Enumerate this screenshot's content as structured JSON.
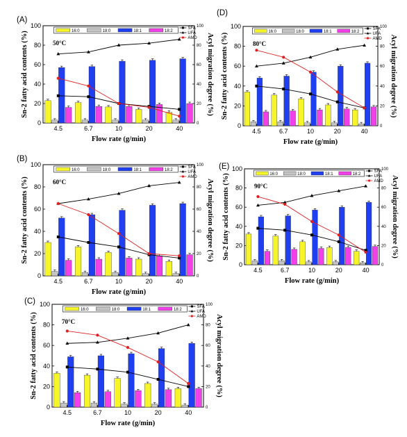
{
  "figure": {
    "colors": {
      "c16_0": "#f5f52a",
      "c18_0": "#c4c4c4",
      "c18_1": "#1f3ff0",
      "c18_2": "#f040e8",
      "sfa": "#000000",
      "ufa": "#000000",
      "amd": "#e02020"
    },
    "legend_labels": {
      "bars": [
        "16:0",
        "18:0",
        "18:1",
        "18:2"
      ],
      "lines": [
        "SFA",
        "UFA",
        "AMD"
      ]
    }
  },
  "chart_data": [
    {
      "type": "bar",
      "panel_label": "(A)",
      "temperature_label": "50°C",
      "categories": [
        "4.5",
        "6.7",
        "10",
        "20",
        "40"
      ],
      "xlabel": "Flow rate (g/min)",
      "ylabel": "Sn-2 fatty acid contents (%)",
      "y2label": "Acyl migration degree (%)",
      "ylim": [
        0,
        100
      ],
      "y2lim": [
        0,
        100
      ],
      "yticks": [
        "0",
        "20",
        "40",
        "60",
        "80",
        "100"
      ],
      "y2ticks": [
        "0",
        "20",
        "40",
        "60",
        "80",
        "100"
      ],
      "series": [
        {
          "name": "16:0",
          "values": [
            23,
            21,
            16.5,
            14,
            11
          ]
        },
        {
          "name": "18:0",
          "values": [
            3,
            3,
            3,
            3,
            3
          ]
        },
        {
          "name": "18:1",
          "values": [
            57,
            58,
            63.5,
            64.5,
            66
          ]
        },
        {
          "name": "18:2",
          "values": [
            16,
            17,
            17,
            19,
            20
          ]
        }
      ],
      "line_series": [
        {
          "name": "SFA",
          "values": [
            28,
            27,
            20,
            17,
            14
          ]
        },
        {
          "name": "UFA",
          "values": [
            71,
            73,
            80,
            82,
            86
          ]
        },
        {
          "name": "AMD",
          "values": [
            46,
            38,
            20,
            16,
            7
          ]
        }
      ]
    },
    {
      "type": "bar",
      "panel_label": "(B)",
      "temperature_label": "60°C",
      "categories": [
        "4.5",
        "6.7",
        "10",
        "20",
        "40"
      ],
      "xlabel": "Flow rate (g/min)",
      "ylabel": "Sn-2 fatty acid contents (%)",
      "y2label": "Acyl migration degree (%)",
      "ylim": [
        0,
        100
      ],
      "y2lim": [
        0,
        100
      ],
      "yticks": [
        "0",
        "20",
        "40",
        "60",
        "80",
        "100"
      ],
      "y2ticks": [
        "0",
        "20",
        "40",
        "60",
        "80",
        "100"
      ],
      "series": [
        {
          "name": "16:0",
          "values": [
            30,
            26,
            21,
            15,
            13
          ]
        },
        {
          "name": "18:0",
          "values": [
            4,
            3,
            3,
            2,
            2
          ]
        },
        {
          "name": "18:1",
          "values": [
            52,
            55,
            59,
            63.5,
            65
          ]
        },
        {
          "name": "18:2",
          "values": [
            14,
            15,
            16,
            18,
            19
          ]
        }
      ],
      "line_series": [
        {
          "name": "SFA",
          "values": [
            35,
            30,
            26,
            19,
            16
          ]
        },
        {
          "name": "UFA",
          "values": [
            65,
            69,
            74,
            81,
            84
          ]
        },
        {
          "name": "AMD",
          "values": [
            65,
            55,
            38,
            20,
            18
          ]
        }
      ]
    },
    {
      "type": "bar",
      "panel_label": "(C)",
      "temperature_label": "70°C",
      "categories": [
        "4.5",
        "6.7",
        "10",
        "20",
        "40"
      ],
      "xlabel": "Flow rate (g/min)",
      "ylabel": "Sn-2 fatty acid contents (%)",
      "y2label": "Acyl migration degree (%)",
      "ylim": [
        0,
        100
      ],
      "y2lim": [
        0,
        100
      ],
      "yticks": [
        "0",
        "20",
        "40",
        "60",
        "80",
        "100"
      ],
      "y2ticks": [
        "0",
        "20",
        "40",
        "60",
        "80",
        "100"
      ],
      "series": [
        {
          "name": "16:0",
          "values": [
            33,
            31,
            28,
            23,
            18
          ]
        },
        {
          "name": "18:0",
          "values": [
            4,
            4,
            3,
            3,
            2
          ]
        },
        {
          "name": "18:1",
          "values": [
            49,
            50,
            52,
            57,
            62
          ]
        },
        {
          "name": "18:2",
          "values": [
            14,
            15,
            16,
            17,
            18
          ]
        }
      ],
      "line_series": [
        {
          "name": "SFA",
          "values": [
            39,
            37,
            34,
            27,
            20
          ]
        },
        {
          "name": "UFA",
          "values": [
            62,
            63,
            67,
            72,
            80
          ]
        },
        {
          "name": "AMD",
          "values": [
            74,
            70,
            58,
            44,
            23
          ]
        }
      ]
    },
    {
      "type": "bar",
      "panel_label": "(D)",
      "temperature_label": "80°C",
      "categories": [
        "4.5",
        "6.7",
        "10",
        "20",
        "40"
      ],
      "xlabel": "Flow rate (g/min)",
      "ylabel": "Sn-2 fatty acid contents (%)",
      "y2label": "Acyl migration degree (%)",
      "ylim": [
        0,
        100
      ],
      "y2lim": [
        0,
        100
      ],
      "yticks": [
        "0",
        "20",
        "40",
        "60",
        "80",
        "100"
      ],
      "y2ticks": [
        "0",
        "20",
        "40",
        "60",
        "80",
        "100"
      ],
      "series": [
        {
          "name": "16:0",
          "values": [
            34,
            31,
            27,
            21,
            16
          ]
        },
        {
          "name": "18:0",
          "values": [
            4,
            4,
            3,
            3,
            2
          ]
        },
        {
          "name": "18:1",
          "values": [
            48,
            50,
            54,
            60,
            63
          ]
        },
        {
          "name": "18:2",
          "values": [
            14,
            15,
            16,
            17,
            19
          ]
        }
      ],
      "line_series": [
        {
          "name": "SFA",
          "values": [
            40,
            37,
            32,
            24,
            18
          ]
        },
        {
          "name": "UFA",
          "values": [
            60,
            63,
            69,
            77,
            81
          ]
        },
        {
          "name": "AMD",
          "values": [
            76,
            69,
            54,
            34,
            18
          ]
        }
      ]
    },
    {
      "type": "bar",
      "panel_label": "(E)",
      "temperature_label": "90°C",
      "categories": [
        "4.5",
        "6.7",
        "10",
        "20",
        "40"
      ],
      "xlabel": "Flow rate (g/min)",
      "ylabel": "Sn-2 fatty acid contents (%)",
      "y2label": "Acyl migration degree (%)",
      "ylim": [
        0,
        100
      ],
      "y2lim": [
        0,
        100
      ],
      "yticks": [
        "0",
        "20",
        "40",
        "60",
        "80",
        "100"
      ],
      "y2ticks": [
        "0",
        "20",
        "40",
        "60",
        "80",
        "100"
      ],
      "series": [
        {
          "name": "16:0",
          "values": [
            32,
            30,
            24,
            18,
            14
          ]
        },
        {
          "name": "18:0",
          "values": [
            4,
            4,
            3,
            3,
            2
          ]
        },
        {
          "name": "18:1",
          "values": [
            50,
            51,
            57,
            60,
            65
          ]
        },
        {
          "name": "18:2",
          "values": [
            14,
            16,
            17,
            18,
            19
          ]
        }
      ],
      "line_series": [
        {
          "name": "SFA",
          "values": [
            38,
            36,
            31,
            24,
            15
          ]
        },
        {
          "name": "UFA",
          "values": [
            62,
            65,
            72,
            77,
            82
          ]
        },
        {
          "name": "AMD",
          "values": [
            71,
            63,
            45,
            31,
            13
          ]
        }
      ]
    }
  ]
}
